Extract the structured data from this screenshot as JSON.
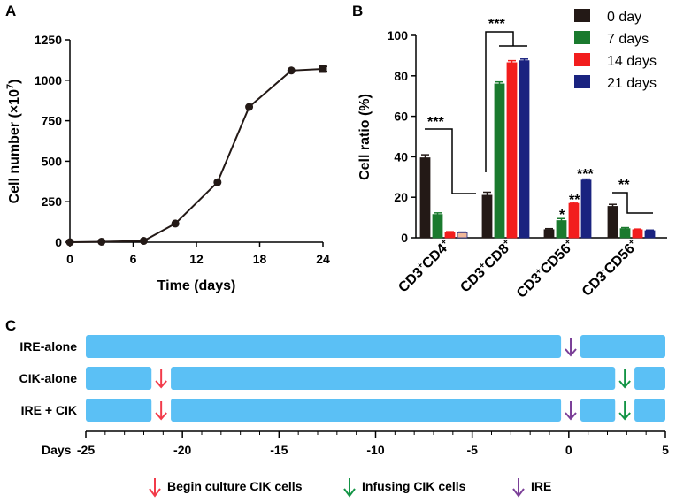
{
  "panels": {
    "a": "A",
    "b": "B",
    "c": "C"
  },
  "chart_data": [
    {
      "type": "line",
      "panel": "A",
      "xlabel": "Time (days)",
      "ylabel_text": "Cell number (×10",
      "ylabel_exp": "7",
      "ylabel_close": ")",
      "xlim": [
        0,
        24
      ],
      "ylim": [
        0,
        1250
      ],
      "xticks": [
        0,
        6,
        12,
        18,
        24
      ],
      "yticks": [
        0,
        250,
        500,
        750,
        1000,
        1250
      ],
      "x": [
        0,
        3,
        7,
        10,
        14,
        17,
        21,
        24
      ],
      "y": [
        0,
        3,
        8,
        115,
        370,
        835,
        1060,
        1070
      ],
      "error": [
        0,
        0,
        0,
        0,
        0,
        0,
        0,
        15
      ]
    },
    {
      "type": "bar",
      "panel": "B",
      "ylabel": "Cell ratio (%)",
      "ylim": [
        0,
        100
      ],
      "yticks": [
        0,
        20,
        40,
        60,
        80,
        100
      ],
      "categories": [
        {
          "parts": [
            {
              "t": "CD3"
            },
            {
              "t": "+",
              "sup": true
            },
            {
              "t": "CD4"
            },
            {
              "t": "+",
              "sup": true
            }
          ]
        },
        {
          "parts": [
            {
              "t": "CD3"
            },
            {
              "t": "+",
              "sup": true
            },
            {
              "t": "CD8"
            },
            {
              "t": "+",
              "sup": true
            }
          ]
        },
        {
          "parts": [
            {
              "t": "CD3"
            },
            {
              "t": "+",
              "sup": true
            },
            {
              "t": "CD56"
            },
            {
              "t": "+",
              "sup": true
            }
          ]
        },
        {
          "parts": [
            {
              "t": "CD3"
            },
            {
              "t": "-",
              "sup": true
            },
            {
              "t": "CD56"
            },
            {
              "t": "+",
              "sup": true
            }
          ]
        }
      ],
      "series": [
        {
          "name": "0 day",
          "color": "#231916",
          "values": [
            39.5,
            21,
            4,
            15.5
          ],
          "errors": [
            1.5,
            1.5,
            0.5,
            1
          ]
        },
        {
          "name": "7 days",
          "color": "#1a7a2e",
          "values": [
            11.5,
            76,
            8.5,
            4.5
          ],
          "errors": [
            0.8,
            1,
            1,
            0.5
          ]
        },
        {
          "name": "14 days",
          "color": "#f21d1d",
          "values": [
            2.5,
            86.5,
            17,
            4
          ],
          "errors": [
            0.5,
            1,
            0.5,
            0.3
          ]
        },
        {
          "name": "21 days",
          "color": "#1a2380",
          "values": [
            2.5,
            87.5,
            28.5,
            3.5
          ],
          "errors": [
            0.3,
            0.8,
            0.5,
            0.3
          ]
        }
      ],
      "bar4_first_group_color": "#f0b89a",
      "significance": [
        "***",
        "***",
        "*",
        "**",
        "***",
        "**"
      ]
    }
  ],
  "schedule": {
    "rows": [
      "IRE-alone",
      "CIK-alone",
      "IRE + CIK"
    ],
    "axis_title": "Days",
    "ticks": [
      -25,
      -20,
      -15,
      -10,
      -5,
      0,
      5
    ],
    "bar_color": "#5bc0f5",
    "legend": [
      {
        "label": "Begin culture CIK cells",
        "color": "#f23b4a"
      },
      {
        "label": "Infusing CIK cells",
        "color": "#139445"
      },
      {
        "label": "IRE",
        "color": "#7b3f98"
      }
    ]
  }
}
